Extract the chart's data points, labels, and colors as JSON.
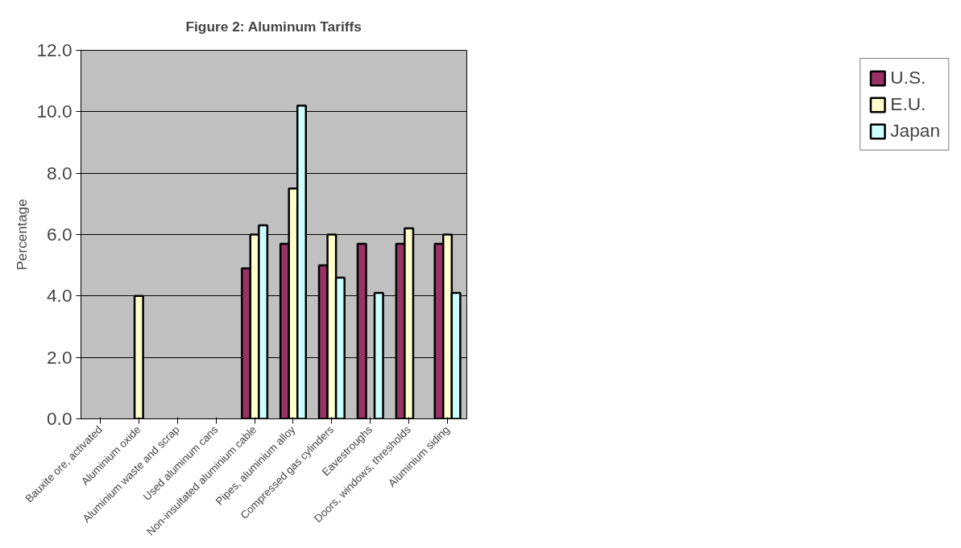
{
  "chart_data": {
    "type": "bar",
    "title": "Figure 2: Aluminum Tariffs",
    "ylabel": "Percentage",
    "categories": [
      "Bauxite ore, activated",
      "Aluminium oxide",
      "Aluminium waste and scrap",
      "Used aluminum cans",
      "Non-insultated aluminium cable",
      "Pipes, aluminium alloy",
      "Compressed gas cylinders",
      "Eavestroughs",
      "Doors, windows, thresholds",
      "Aluminium siding"
    ],
    "series": [
      {
        "name": "U.S.",
        "color": "#993366",
        "values": [
          null,
          null,
          null,
          null,
          4.9,
          5.7,
          5.0,
          5.7,
          5.7,
          5.7
        ]
      },
      {
        "name": "E.U.",
        "color": "#ffffcc",
        "values": [
          null,
          4.0,
          null,
          null,
          6.0,
          7.5,
          6.0,
          null,
          6.2,
          6.0
        ]
      },
      {
        "name": "Japan",
        "color": "#ccffff",
        "values": [
          null,
          null,
          null,
          null,
          6.3,
          10.2,
          4.6,
          4.1,
          null,
          4.1
        ]
      }
    ],
    "ylim": [
      0,
      12
    ],
    "yticks": [
      {
        "value": 0,
        "label": "0.0"
      },
      {
        "value": 2,
        "label": "2.0"
      },
      {
        "value": 4,
        "label": "4.0"
      },
      {
        "value": 6,
        "label": "6.0"
      },
      {
        "value": 8,
        "label": "8.0"
      },
      {
        "value": 10,
        "label": "10.0"
      },
      {
        "value": 12,
        "label": "12.0"
      }
    ],
    "grid": "y",
    "legend": "right"
  }
}
